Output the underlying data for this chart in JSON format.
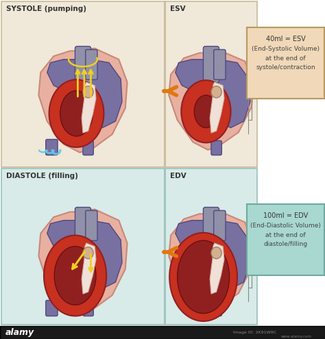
{
  "bg_color": "#ffffff",
  "panel_bg_top": "#f0e8d8",
  "panel_bg_bot": "#d8ebe8",
  "panel_border_top": "#c8b898",
  "panel_border_bot": "#98c0bc",
  "title_tl": "SYSTOLE (pumping)",
  "title_tr": "ESV",
  "title_bl": "DIASTOLE (filling)",
  "title_br": "EDV",
  "esv_box_bg": "#f0d8b8",
  "esv_box_border": "#b89860",
  "esv_text_line1": "40ml = ESV",
  "esv_text_line2": "(End-Systolic Volume)",
  "esv_text_line3": "at the end of",
  "esv_text_line4": "systole/contraction",
  "edv_box_bg": "#a8d8d0",
  "edv_box_border": "#70a8a0",
  "edv_text_line1": "100ml = EDV",
  "edv_text_line2": "(End-Diastolic Volume)",
  "edv_text_line3": "at the end of",
  "edv_text_line4": "diastole/filling",
  "arrow_color": "#e07810",
  "line_color": "#666666",
  "h_outer": "#e8b0a0",
  "h_outer_edge": "#c88878",
  "h_purple": "#7870a0",
  "h_purple_dark": "#5858a0",
  "h_purple_edge": "#504880",
  "h_red_bright": "#c83020",
  "h_red_dark": "#902020",
  "h_red_inner": "#6a1010",
  "h_pink_light": "#f0c8c0",
  "h_gray_vessel": "#9090a8",
  "h_beige": "#d4b090",
  "h_white_sep": "#f0e0d8",
  "alamy_bg": "#1a1a1a",
  "title_fontsize": 7.5,
  "label_fontsize": 6.5
}
